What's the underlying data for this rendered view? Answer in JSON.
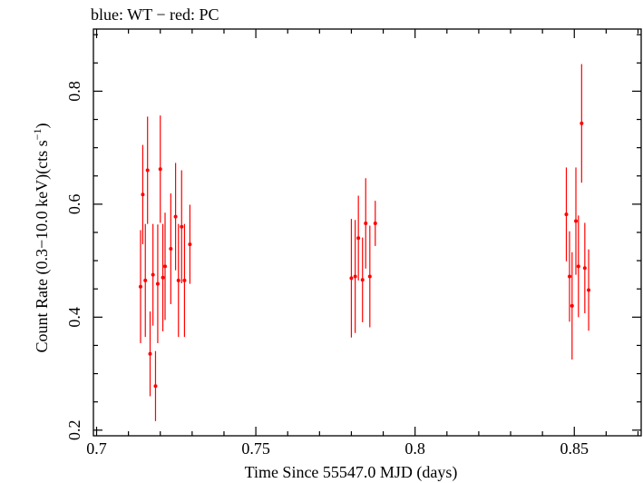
{
  "chart_data": {
    "type": "scatter",
    "title": "blue: WT − red: PC",
    "xlabel": "Time Since 55547.0 MJD (days)",
    "ylabel_main": "Count Rate (0.3−10.0 keV)(cts s",
    "ylabel_sup": "−1",
    "ylabel_close": ")",
    "xlim": [
      0.699,
      0.871
    ],
    "ylim": [
      0.19,
      0.91
    ],
    "x_ticks": [
      0.7,
      0.75,
      0.8,
      0.85
    ],
    "x_tick_labels": [
      "0.7",
      "0.75",
      "0.8",
      "0.85"
    ],
    "y_ticks": [
      0.2,
      0.4,
      0.6,
      0.8
    ],
    "y_tick_labels": [
      "0.2",
      "0.4",
      "0.6",
      "0.8"
    ],
    "grid": false,
    "series": [
      {
        "color": "#ff0000",
        "points": [
          {
            "x": 0.7138,
            "y": 0.454,
            "err": 0.1
          },
          {
            "x": 0.7145,
            "y": 0.617,
            "err": 0.088
          },
          {
            "x": 0.7153,
            "y": 0.465,
            "err": 0.1
          },
          {
            "x": 0.716,
            "y": 0.66,
            "err": 0.095
          },
          {
            "x": 0.7168,
            "y": 0.335,
            "err": 0.075
          },
          {
            "x": 0.7177,
            "y": 0.475,
            "err": 0.09
          },
          {
            "x": 0.7185,
            "y": 0.278,
            "err": 0.062
          },
          {
            "x": 0.7192,
            "y": 0.459,
            "err": 0.105
          },
          {
            "x": 0.72,
            "y": 0.662,
            "err": 0.095
          },
          {
            "x": 0.7208,
            "y": 0.47,
            "err": 0.095
          },
          {
            "x": 0.7215,
            "y": 0.49,
            "err": 0.095
          },
          {
            "x": 0.7233,
            "y": 0.521,
            "err": 0.098
          },
          {
            "x": 0.7248,
            "y": 0.578,
            "err": 0.095
          },
          {
            "x": 0.7257,
            "y": 0.465,
            "err": 0.1
          },
          {
            "x": 0.7267,
            "y": 0.56,
            "err": 0.1
          },
          {
            "x": 0.7276,
            "y": 0.465,
            "err": 0.1
          },
          {
            "x": 0.7293,
            "y": 0.529,
            "err": 0.07
          },
          {
            "x": 0.78,
            "y": 0.469,
            "err": 0.105
          },
          {
            "x": 0.7812,
            "y": 0.472,
            "err": 0.1
          },
          {
            "x": 0.7822,
            "y": 0.54,
            "err": 0.075
          },
          {
            "x": 0.7835,
            "y": 0.466,
            "err": 0.075
          },
          {
            "x": 0.7845,
            "y": 0.566,
            "err": 0.08
          },
          {
            "x": 0.7858,
            "y": 0.472,
            "err": 0.09
          },
          {
            "x": 0.7875,
            "y": 0.566,
            "err": 0.04
          },
          {
            "x": 0.8475,
            "y": 0.582,
            "err": 0.083
          },
          {
            "x": 0.8485,
            "y": 0.472,
            "err": 0.08
          },
          {
            "x": 0.8493,
            "y": 0.42,
            "err": 0.095
          },
          {
            "x": 0.8505,
            "y": 0.57,
            "err": 0.095
          },
          {
            "x": 0.8513,
            "y": 0.49,
            "err": 0.09
          },
          {
            "x": 0.8523,
            "y": 0.743,
            "err": 0.105
          },
          {
            "x": 0.8533,
            "y": 0.487,
            "err": 0.08
          },
          {
            "x": 0.8545,
            "y": 0.448,
            "err": 0.072
          }
        ]
      }
    ]
  }
}
